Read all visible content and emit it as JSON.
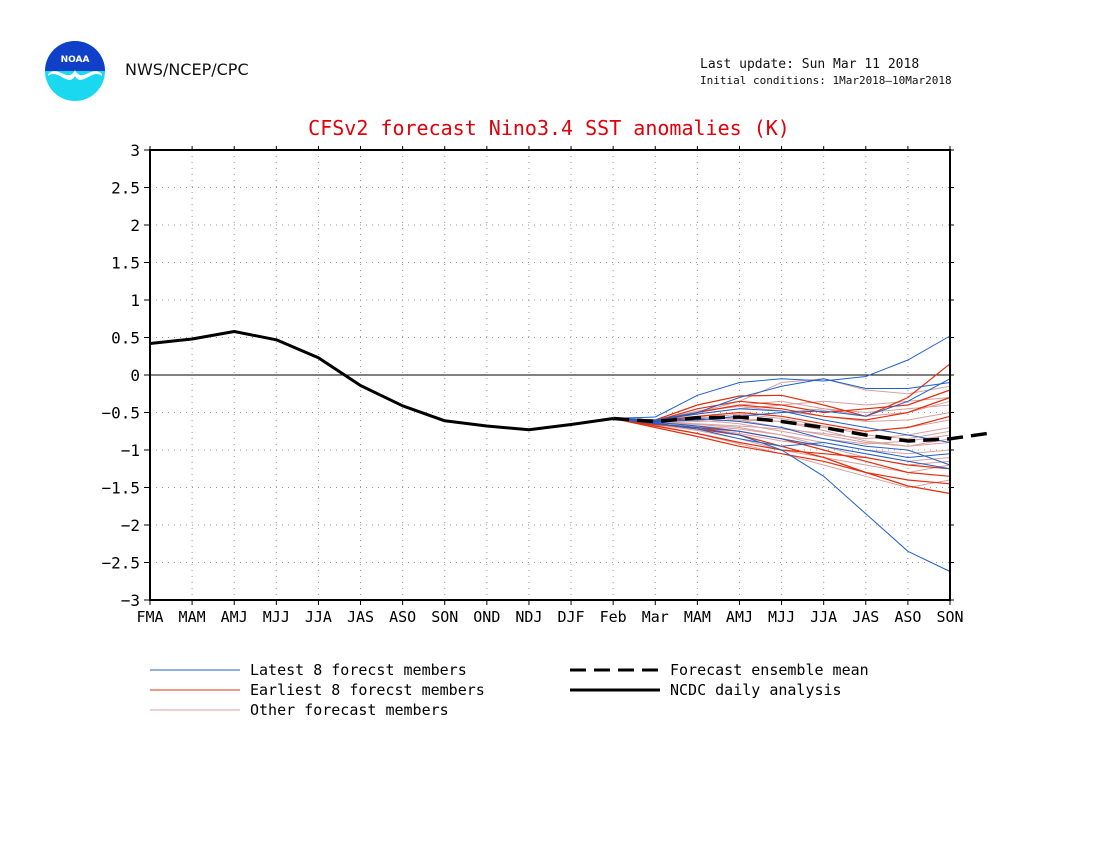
{
  "header": {
    "logo_text": "NOAA",
    "agency": "NWS/NCEP/CPC",
    "last_update": "Last update: Sun Mar 11 2018",
    "initial_conditions": "Initial conditions: 1Mar2018–10Mar2018"
  },
  "chart_data": {
    "type": "line",
    "title": "CFSv2 forecast Nino3.4 SST anomalies (K)",
    "title_color": "#e0000a",
    "categories": [
      "FMA",
      "MAM",
      "AMJ",
      "MJJ",
      "JJA",
      "JAS",
      "ASO",
      "SON",
      "OND",
      "NDJ",
      "DJF",
      "Feb",
      "Mar",
      "MAM",
      "AMJ",
      "MJJ",
      "JJA",
      "JAS",
      "ASO",
      "SON"
    ],
    "ylim": [
      -3,
      3
    ],
    "yticks": [
      "3",
      "2.5",
      "2",
      "1.5",
      "1",
      "0.5",
      "0",
      "−0.5",
      "−1",
      "−1.5",
      "−2",
      "−2.5",
      "−3"
    ],
    "grid": true,
    "zero_line": true,
    "colors": {
      "latest": "#2060c8",
      "earliest": "#e03010",
      "other": "#d8a0a0",
      "analysis": "#000000",
      "mean": "#000000"
    },
    "analysis": {
      "name": "NCDC daily analysis",
      "values": [
        0.42,
        0.48,
        0.58,
        0.47,
        0.23,
        -0.14,
        -0.41,
        -0.61,
        -0.68,
        -0.73,
        -0.66,
        -0.58
      ]
    },
    "ensemble_mean": {
      "name": "Forecast ensemble mean",
      "start_index": 11,
      "values": [
        -0.58,
        -0.62,
        -0.57,
        -0.56,
        -0.62,
        -0.7,
        -0.8,
        -0.88,
        -0.85,
        -0.77
      ]
    },
    "latest_members": {
      "name": "Latest 8 forecst members",
      "start_index": 11,
      "series": [
        [
          -0.58,
          -0.56,
          -0.27,
          -0.1,
          -0.05,
          -0.08,
          -0.02,
          0.2,
          0.52
        ],
        [
          -0.58,
          -0.6,
          -0.5,
          -0.3,
          -0.15,
          -0.05,
          -0.18,
          -0.18,
          -0.1
        ],
        [
          -0.58,
          -0.62,
          -0.6,
          -0.55,
          -0.5,
          -0.48,
          -0.55,
          -0.35,
          -0.05
        ],
        [
          -0.58,
          -0.65,
          -0.7,
          -0.8,
          -1.0,
          -1.35,
          -1.85,
          -2.35,
          -2.62
        ],
        [
          -0.58,
          -0.63,
          -0.68,
          -0.75,
          -0.85,
          -0.95,
          -1.05,
          -1.15,
          -1.25
        ],
        [
          -0.58,
          -0.61,
          -0.58,
          -0.62,
          -0.7,
          -0.85,
          -0.95,
          -1.0,
          -1.2
        ],
        [
          -0.58,
          -0.64,
          -0.72,
          -0.85,
          -0.95,
          -0.9,
          -1.0,
          -1.1,
          -1.05
        ],
        [
          -0.58,
          -0.6,
          -0.52,
          -0.45,
          -0.48,
          -0.6,
          -0.7,
          -0.8,
          -0.9
        ]
      ]
    },
    "earliest_members": {
      "name": "Earliest 8 forecst members",
      "start_index": 11,
      "series": [
        [
          -0.58,
          -0.6,
          -0.4,
          -0.28,
          -0.27,
          -0.4,
          -0.55,
          -0.3,
          0.15
        ],
        [
          -0.58,
          -0.65,
          -0.72,
          -0.8,
          -0.95,
          -1.1,
          -1.3,
          -1.48,
          -1.58
        ],
        [
          -0.58,
          -0.7,
          -0.82,
          -0.95,
          -1.05,
          -1.15,
          -1.3,
          -1.4,
          -1.45
        ],
        [
          -0.58,
          -0.63,
          -0.5,
          -0.4,
          -0.45,
          -0.55,
          -0.6,
          -0.5,
          -0.3
        ],
        [
          -0.58,
          -0.66,
          -0.7,
          -0.75,
          -0.85,
          -1.0,
          -1.15,
          -1.3,
          -1.35
        ],
        [
          -0.58,
          -0.62,
          -0.55,
          -0.5,
          -0.55,
          -0.65,
          -0.75,
          -0.7,
          -0.55
        ],
        [
          -0.58,
          -0.68,
          -0.78,
          -0.9,
          -1.0,
          -1.05,
          -1.1,
          -1.2,
          -1.25
        ],
        [
          -0.58,
          -0.61,
          -0.45,
          -0.35,
          -0.4,
          -0.5,
          -0.45,
          -0.4,
          -0.2
        ]
      ]
    },
    "other_members": {
      "name": "Other forecast members",
      "start_index": 11,
      "series": [
        [
          -0.58,
          -0.6,
          -0.5,
          -0.35,
          -0.1,
          -0.05,
          -0.2,
          -0.25,
          -0.15
        ],
        [
          -0.58,
          -0.62,
          -0.6,
          -0.55,
          -0.5,
          -0.45,
          -0.5,
          -0.45,
          -0.4
        ],
        [
          -0.58,
          -0.64,
          -0.66,
          -0.7,
          -0.8,
          -0.9,
          -1.0,
          -1.05,
          -1.0
        ],
        [
          -0.58,
          -0.6,
          -0.55,
          -0.6,
          -0.7,
          -0.8,
          -0.9,
          -0.95,
          -0.9
        ],
        [
          -0.58,
          -0.66,
          -0.74,
          -0.85,
          -1.0,
          -1.1,
          -1.2,
          -1.3,
          -1.2
        ],
        [
          -0.58,
          -0.61,
          -0.52,
          -0.45,
          -0.4,
          -0.35,
          -0.4,
          -0.35,
          -0.3
        ],
        [
          -0.58,
          -0.65,
          -0.7,
          -0.78,
          -0.88,
          -0.95,
          -1.05,
          -1.15,
          -1.1
        ],
        [
          -0.58,
          -0.63,
          -0.65,
          -0.68,
          -0.72,
          -0.78,
          -0.85,
          -0.8,
          -0.7
        ],
        [
          -0.58,
          -0.6,
          -0.48,
          -0.42,
          -0.48,
          -0.55,
          -0.62,
          -0.6,
          -0.5
        ],
        [
          -0.58,
          -0.67,
          -0.78,
          -0.92,
          -1.05,
          -1.2,
          -1.35,
          -1.5,
          -1.4
        ],
        [
          -0.58,
          -0.62,
          -0.58,
          -0.52,
          -0.58,
          -0.68,
          -0.8,
          -0.85,
          -0.75
        ],
        [
          -0.58,
          -0.64,
          -0.62,
          -0.6,
          -0.62,
          -0.7,
          -0.75,
          -0.7,
          -0.6
        ],
        [
          -0.58,
          -0.61,
          -0.56,
          -0.58,
          -0.62,
          -0.74,
          -0.88,
          -0.95,
          -0.85
        ],
        [
          -0.58,
          -0.66,
          -0.68,
          -0.72,
          -0.8,
          -0.95,
          -1.1,
          -1.2,
          -1.15
        ],
        [
          -0.58,
          -0.6,
          -0.5,
          -0.4,
          -0.35,
          -0.45,
          -0.55,
          -0.5,
          -0.35
        ],
        [
          -0.58,
          -0.63,
          -0.6,
          -0.65,
          -0.75,
          -0.85,
          -0.92,
          -0.88,
          -0.8
        ]
      ]
    },
    "legend": {
      "placement": "bottom"
    }
  }
}
